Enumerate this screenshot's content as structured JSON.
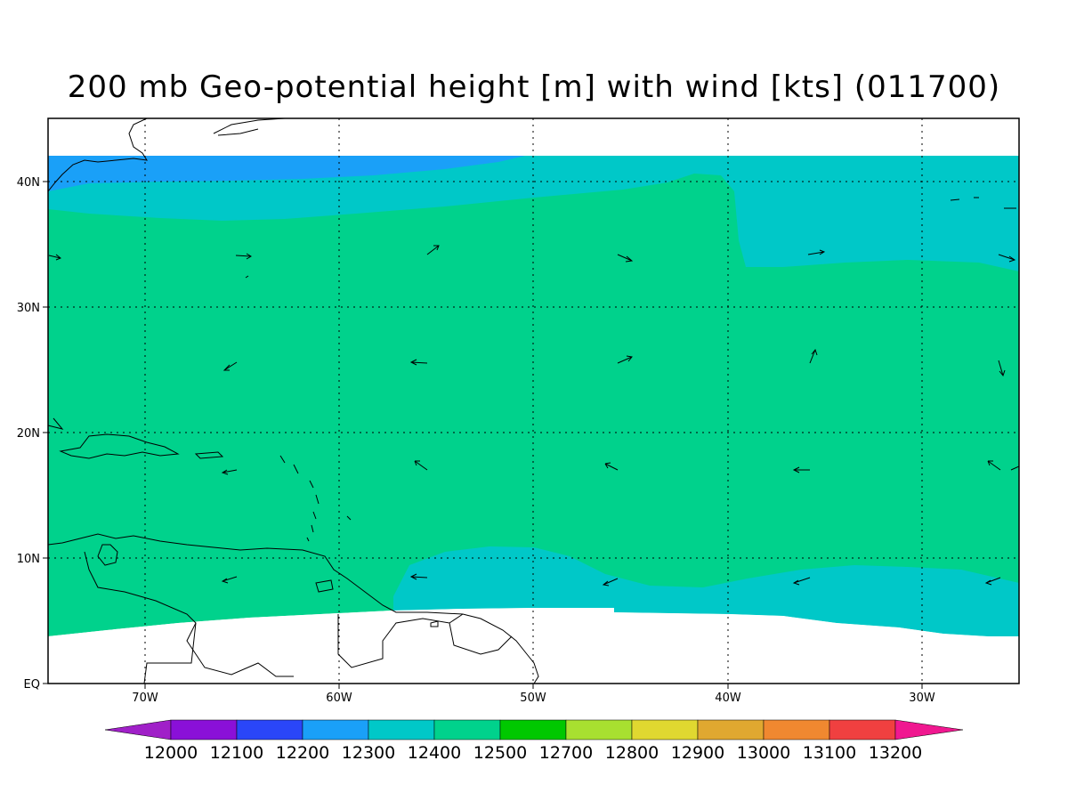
{
  "title": "200 mb Geo-potential height [m] with wind [kts] (011700)",
  "map": {
    "lon_range": [
      -75,
      -25
    ],
    "lat_range": [
      0,
      45
    ],
    "lon_ticks": [
      "70W",
      "60W",
      "50W",
      "40W",
      "30W"
    ],
    "lat_ticks": [
      "EQ",
      "10N",
      "20N",
      "30N",
      "40N"
    ],
    "grid": true
  },
  "colorbar": {
    "labels": [
      "12000",
      "12100",
      "12200",
      "12300",
      "12400",
      "12500",
      "12700",
      "12800",
      "12900",
      "13000",
      "13100",
      "13200"
    ],
    "colors": {
      "below": "#a020c8",
      "bins": [
        "#8a10d8",
        "#2a46f8",
        "#1aa0f8",
        "#00c8c8",
        "#00d28c",
        "#00c800",
        "#a8e030",
        "#e0d830",
        "#e0a830",
        "#f08830",
        "#f04040"
      ],
      "above": "#f01890"
    }
  },
  "legend_colors": {
    "height_12200_12300": "#1aa0f8",
    "height_12300_12400": "#00c8c8",
    "height_12400_12500": "#00d28c",
    "coastline": "#000000"
  },
  "wind_vectors_note_units": "kts"
}
